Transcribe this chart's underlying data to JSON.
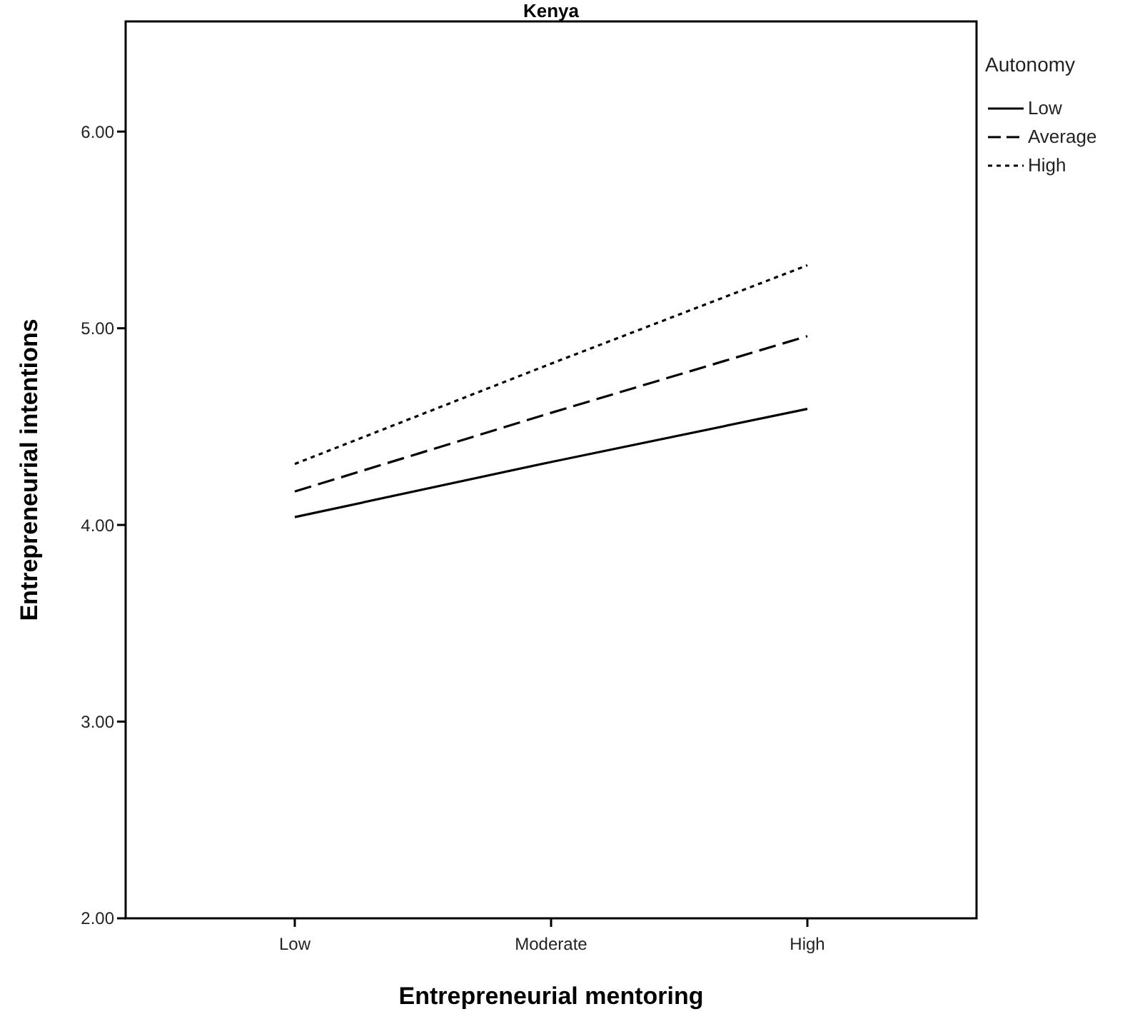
{
  "chart_data": {
    "type": "line",
    "title": "Kenya",
    "xlabel": "Entrepreneurial mentoring",
    "ylabel": "Entrepreneurial intentions",
    "legend_title": "Autonomy",
    "legend": "right",
    "categories": [
      "Low",
      "Moderate",
      "High"
    ],
    "series": [
      {
        "name": "Low",
        "color": "#000000",
        "line_style": "solid",
        "values": [
          4.04,
          4.32,
          4.59
        ]
      },
      {
        "name": "Average",
        "color": "#000000",
        "line_style": "dashed",
        "values": [
          4.17,
          4.57,
          4.96
        ]
      },
      {
        "name": "High",
        "color": "#000000",
        "line_style": "dotted",
        "values": [
          4.31,
          4.82,
          5.32
        ]
      }
    ],
    "ylim": [
      2,
      6.56
    ],
    "yticks": [
      {
        "value": 2,
        "label": "2.00"
      },
      {
        "value": 3,
        "label": "3.00"
      },
      {
        "value": 4,
        "label": "4.00"
      },
      {
        "value": 5,
        "label": "5.00"
      },
      {
        "value": 6,
        "label": "6.00"
      }
    ],
    "grid": false,
    "marker": "none"
  }
}
